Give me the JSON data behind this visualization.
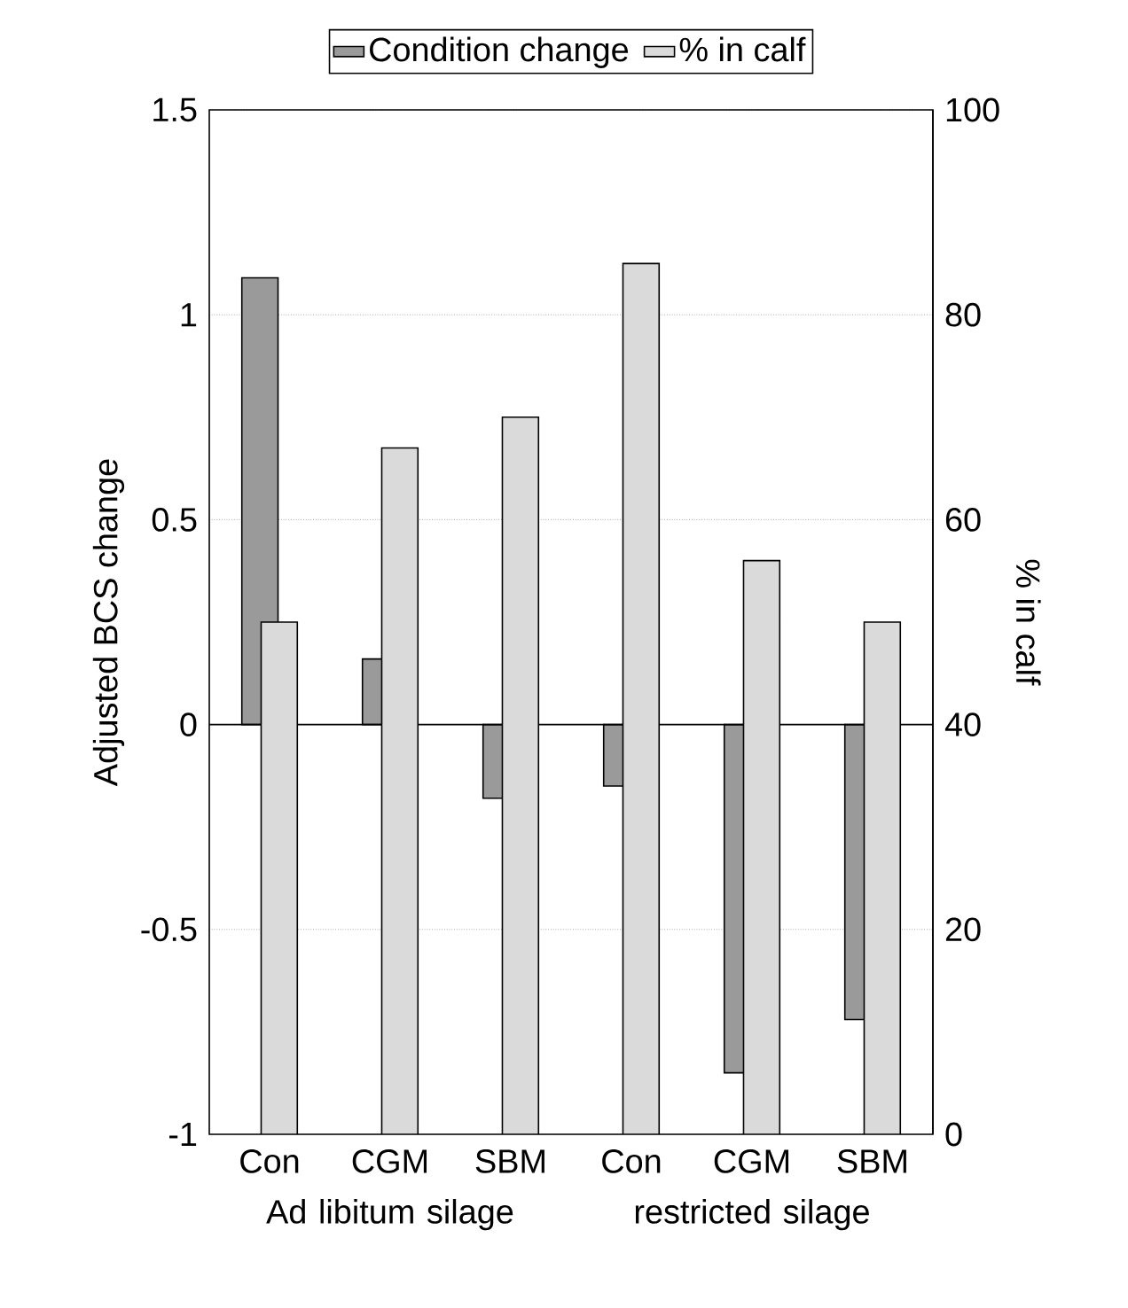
{
  "chart_data": {
    "type": "bar",
    "ylabel": "Adjusted BCS change",
    "y2label": "% in calf",
    "categories": [
      "Con",
      "CGM",
      "SBM",
      "Con",
      "CGM",
      "SBM"
    ],
    "series": [
      {
        "name": "Condition change",
        "color": "#9a9a9a",
        "values": [
          1.09,
          0.16,
          -0.18,
          -0.15,
          -0.85,
          -0.72
        ]
      },
      {
        "name": "% in calf",
        "color": "#dadada",
        "axis": "y2",
        "values": [
          50,
          67,
          70,
          85,
          56,
          50
        ]
      }
    ],
    "ylim": [
      -1,
      1.5
    ],
    "yticks": [
      -1,
      -0.5,
      0,
      0.5,
      1,
      1.5
    ],
    "y2lim": [
      0,
      100
    ],
    "y2ticks": [
      0,
      20,
      40,
      60,
      80,
      100
    ],
    "ref_lines": [
      {
        "axis": "y",
        "value": 0
      }
    ],
    "annotations": [
      "Ad libitum silage",
      "restricted silage"
    ],
    "grid": "y",
    "legend": "top"
  }
}
